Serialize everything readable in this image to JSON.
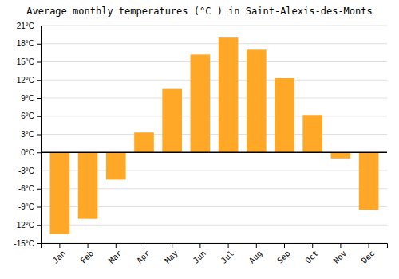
{
  "chart_data": {
    "type": "bar",
    "title": "Average monthly temperatures (°C ) in Saint-Alexis-des-Monts",
    "categories": [
      "Jan",
      "Feb",
      "Mar",
      "Apr",
      "May",
      "Jun",
      "Jul",
      "Aug",
      "Sep",
      "Oct",
      "Nov",
      "Dec"
    ],
    "values": [
      -13.5,
      -11.0,
      -4.5,
      3.3,
      10.5,
      16.2,
      19.0,
      17.0,
      12.3,
      6.2,
      -1.0,
      -9.5
    ],
    "color": "#FFA726",
    "ylim": [
      -15,
      21
    ],
    "yticks": [
      {
        "value": -15,
        "label": "-15°C"
      },
      {
        "value": -12,
        "label": "-12°C"
      },
      {
        "value": -9,
        "label": "-9°C"
      },
      {
        "value": -6,
        "label": "-6°C"
      },
      {
        "value": -3,
        "label": "-3°C"
      },
      {
        "value": 0,
        "label": "0°C"
      },
      {
        "value": 3,
        "label": "3°C"
      },
      {
        "value": 6,
        "label": "6°C"
      },
      {
        "value": 9,
        "label": "9°C"
      },
      {
        "value": 12,
        "label": "12°C"
      },
      {
        "value": 15,
        "label": "15°C"
      },
      {
        "value": 18,
        "label": "18°C"
      },
      {
        "value": 21,
        "label": "21°C"
      }
    ],
    "grid": true
  }
}
